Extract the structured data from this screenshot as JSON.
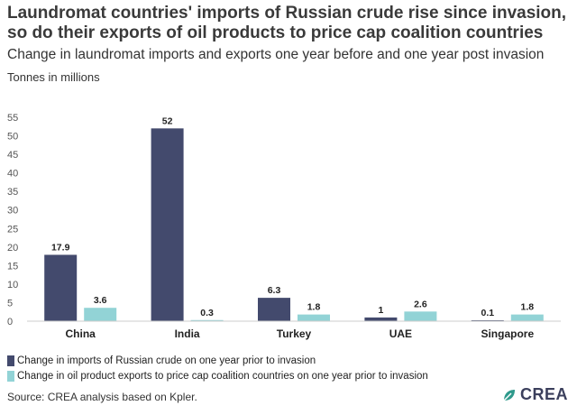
{
  "header": {
    "title": "Laundromat countries' imports of Russian crude rise since invasion, so do their exports of oil products to price cap coalition countries",
    "subtitle": "Change in laundromat imports and exports one year before and one year post invasion",
    "units": "Tonnes in millions"
  },
  "colors": {
    "series1": "#434a6d",
    "series2": "#92d3d6",
    "logo_leaf": "#2f9a8c"
  },
  "footer": {
    "source": "Source: CREA analysis based on Kpler.",
    "logo_text": "CREA"
  },
  "chart_data": {
    "type": "bar",
    "title": "Laundromat countries' imports of Russian crude rise since invasion, so do their exports of oil products to price cap coalition countries",
    "subtitle": "Change in laundromat imports and exports one year before and one year post invasion",
    "ylabel": "Tonnes in millions",
    "xlabel": "",
    "ylim": [
      0,
      55
    ],
    "yticks": [
      0,
      5,
      10,
      15,
      20,
      25,
      30,
      35,
      40,
      45,
      50,
      55
    ],
    "grid": false,
    "legend_position": "bottom-left",
    "categories": [
      "China",
      "India",
      "Turkey",
      "UAE",
      "Singapore"
    ],
    "series": [
      {
        "name": "Change in imports of Russian crude on one year prior to invasion",
        "values": [
          17.9,
          52,
          6.3,
          1,
          0.1
        ],
        "labels": [
          "17.9",
          "52",
          "6.3",
          "1",
          "0.1"
        ]
      },
      {
        "name": "Change in oil product exports to price cap coalition countries on one year prior to invasion",
        "values": [
          3.6,
          0.3,
          1.8,
          2.6,
          1.8
        ],
        "labels": [
          "3.6",
          "0.3",
          "1.8",
          "2.6",
          "1.8"
        ]
      }
    ]
  }
}
